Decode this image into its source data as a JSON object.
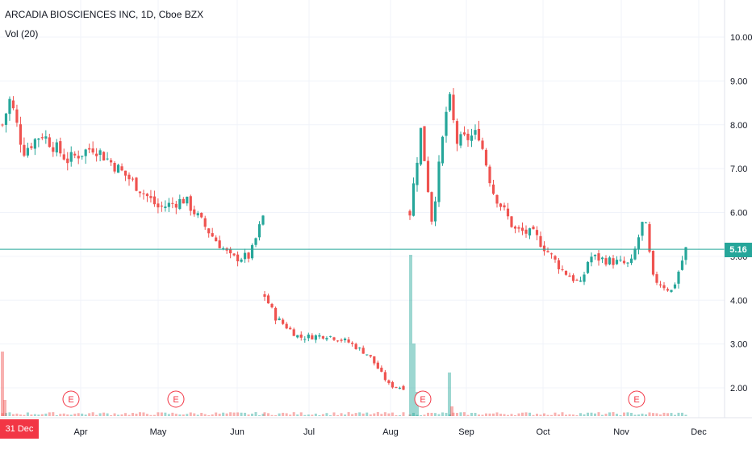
{
  "header": {
    "title": "ARCADIA BIOSCIENCES INC, 1D, Cboe BZX",
    "volume_label": "Vol (20)"
  },
  "colors": {
    "up": "#26a69a",
    "down": "#ef5350",
    "price_line": "#26a69a",
    "grid": "#f0f3fa",
    "date_badge": "#f23645",
    "earnings": "#f23645"
  },
  "crosshair": {
    "date_label": "31 Dec '18"
  },
  "last_price": {
    "label": "5.16",
    "value": 5.16
  },
  "earnings_markers": [
    {
      "label": "E",
      "date": "Mar 28"
    },
    {
      "label": "E",
      "date": "May 8"
    },
    {
      "label": "E",
      "date": "Aug 14"
    },
    {
      "label": "E",
      "date": "Nov 8"
    }
  ],
  "chart_data": {
    "type": "candlestick",
    "title": "ARCADIA BIOSCIENCES INC, 1D, Cboe BZX",
    "y_ticks": [
      "10.00",
      "9.00",
      "8.00",
      "7.00",
      "6.00",
      "5.00",
      "4.00",
      "3.00",
      "2.00"
    ],
    "x_ticks": [
      "Apr",
      "May",
      "Jun",
      "Jul",
      "Aug",
      "Sep",
      "Oct",
      "Nov",
      "Dec"
    ],
    "ylim": [
      1.1,
      10.8
    ],
    "grid": true,
    "series": [
      {
        "name": "price",
        "segments": [
          {
            "from": "Mar 11",
            "to": "Jun 12",
            "start": 8.0,
            "points": [
              [
                0,
                8.0
              ],
              [
                0.03,
                8.6
              ],
              [
                0.08,
                7.4
              ],
              [
                0.15,
                7.8
              ],
              [
                0.25,
                7.2
              ],
              [
                0.35,
                7.5
              ],
              [
                0.5,
                6.7
              ],
              [
                0.6,
                6.1
              ],
              [
                0.7,
                6.3
              ],
              [
                0.8,
                5.5
              ],
              [
                0.88,
                4.95
              ],
              [
                0.95,
                5.0
              ],
              [
                1.0,
                5.9
              ]
            ]
          },
          {
            "from": "Jun 13",
            "to": "Aug 10",
            "points": [
              [
                0,
                4.1
              ],
              [
                0.08,
                3.6
              ],
              [
                0.25,
                3.15
              ],
              [
                0.45,
                3.2
              ],
              [
                0.6,
                3.05
              ],
              [
                0.75,
                2.75
              ],
              [
                0.9,
                2.05
              ],
              [
                1.0,
                2.0
              ]
            ]
          },
          {
            "from": "Aug 13",
            "to": "Nov 29",
            "points": [
              [
                0,
                6.0
              ],
              [
                0.04,
                7.9
              ],
              [
                0.08,
                5.8
              ],
              [
                0.14,
                8.7
              ],
              [
                0.17,
                7.6
              ],
              [
                0.25,
                7.8
              ],
              [
                0.3,
                6.5
              ],
              [
                0.38,
                5.6
              ],
              [
                0.45,
                5.5
              ],
              [
                0.55,
                4.7
              ],
              [
                0.62,
                4.35
              ],
              [
                0.65,
                5.0
              ],
              [
                0.72,
                4.9
              ],
              [
                0.8,
                4.8
              ],
              [
                0.85,
                5.9
              ],
              [
                0.88,
                4.5
              ],
              [
                0.95,
                4.2
              ],
              [
                1.0,
                5.16
              ]
            ]
          }
        ]
      }
    ],
    "volume": {
      "spikes": [
        {
          "date": "Mar 11",
          "level": 0.8
        },
        {
          "date": "Aug 13",
          "level": 1.0
        },
        {
          "date": "Aug 14",
          "level": 0.6
        },
        {
          "date": "Aug 28",
          "level": 0.35
        }
      ]
    }
  }
}
